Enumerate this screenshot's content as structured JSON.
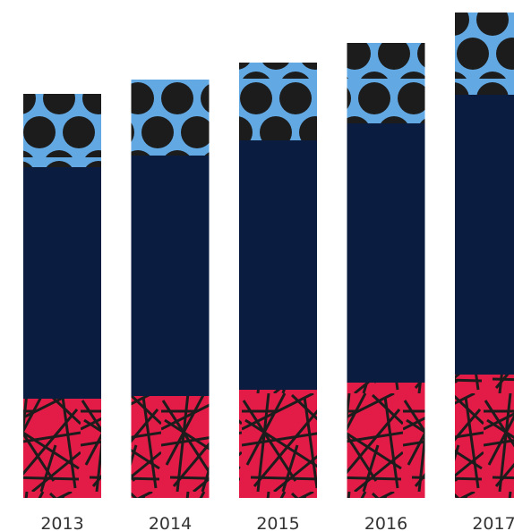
{
  "chart_data": {
    "type": "bar",
    "stacked": true,
    "categories": [
      "2013",
      "2014",
      "2015",
      "2016",
      "2017"
    ],
    "series": [
      {
        "pattern": "lines",
        "color": "#e21c47",
        "values": [
          111,
          114,
          121,
          129,
          138
        ]
      },
      {
        "color": "#0a1d41",
        "values": [
          259,
          269,
          279,
          290,
          313
        ]
      },
      {
        "pattern": "dots",
        "color": "#62a8e3",
        "values": [
          82,
          85,
          87,
          90,
          92
        ]
      }
    ],
    "ylim": [
      0,
      560
    ],
    "grid": false,
    "legend": "none"
  },
  "colors": {
    "background": "#ffffff",
    "pattern_ink": "#1c1c1c",
    "tick_label": "#333333"
  }
}
